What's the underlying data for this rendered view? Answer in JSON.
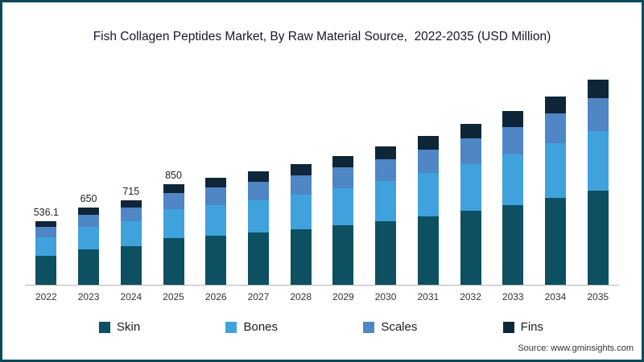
{
  "source": "Source: www.gminsights.com",
  "colors": {
    "frame_border": "#0c4a5a",
    "axis_line": "#b5b5b5",
    "skin": "#0d5062",
    "bones": "#3fa2dd",
    "scales": "#4f86c6",
    "fins": "#0e2638"
  },
  "chart_data": {
    "type": "bar",
    "stacked": true,
    "title": "Fish Collagen Peptides Market, By Raw Material Source,  2022-2035 (USD Million)",
    "categories": [
      "2022",
      "2023",
      "2024",
      "2025",
      "2026",
      "2027",
      "2028",
      "2029",
      "2030",
      "2031",
      "2032",
      "2033",
      "2034",
      "2035"
    ],
    "totals": [
      536.1,
      650,
      715,
      850,
      900,
      955,
      1015,
      1085,
      1165,
      1255,
      1355,
      1465,
      1590,
      1730
    ],
    "bar_labels": [
      "536.1",
      "650",
      "715",
      "850",
      "",
      "",
      "",
      "",
      "",
      "",
      "",
      "",
      "",
      ""
    ],
    "series": [
      {
        "name": "Skin",
        "color": "#0d5062",
        "values": [
          246.6,
          299,
          329,
          391,
          414,
          439,
          467,
          499,
          536,
          577,
          623,
          674,
          731,
          796
        ]
      },
      {
        "name": "Bones",
        "color": "#3fa2dd",
        "values": [
          155.5,
          188.5,
          207,
          247,
          261,
          277,
          294,
          315,
          338,
          364,
          393,
          425,
          461,
          502
        ]
      },
      {
        "name": "Scales",
        "color": "#4f86c6",
        "values": [
          85.8,
          104,
          114,
          136,
          144,
          153,
          162,
          174,
          186,
          201,
          217,
          234,
          254,
          277
        ]
      },
      {
        "name": "Fins",
        "color": "#0e2638",
        "values": [
          48.2,
          58.5,
          65,
          76,
          81,
          86,
          92,
          97,
          105,
          113,
          122,
          132,
          144,
          155
        ]
      }
    ],
    "xlabel": "",
    "ylabel": "",
    "ylim": [
      0,
      1800
    ],
    "grid": false,
    "legend_position": "bottom",
    "legend_entries": [
      "Skin",
      "Bones",
      "Scales",
      "Fins"
    ]
  }
}
